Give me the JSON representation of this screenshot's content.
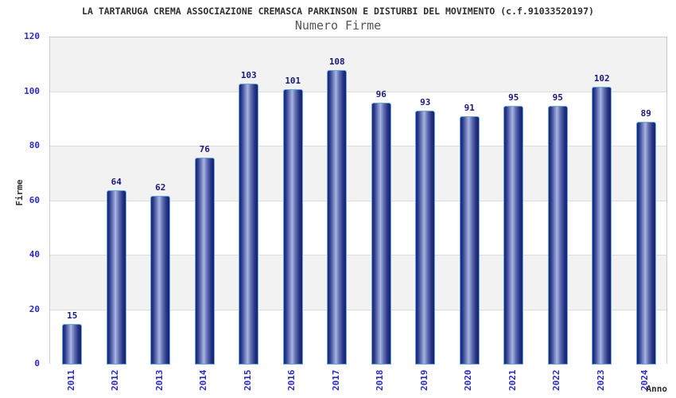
{
  "header": {
    "title": "LA TARTARUGA CREMA ASSOCIAZIONE CREMASCA PARKINSON E DISTURBI DEL MOVIMENTO (c.f.91033520197)",
    "subtitle": "Numero Firme"
  },
  "chart_data": {
    "type": "bar",
    "title": "Numero Firme",
    "categories": [
      "2011",
      "2012",
      "2013",
      "2014",
      "2015",
      "2016",
      "2017",
      "2018",
      "2019",
      "2020",
      "2021",
      "2022",
      "2023",
      "2024"
    ],
    "values": [
      15,
      64,
      62,
      76,
      103,
      101,
      108,
      96,
      93,
      91,
      95,
      95,
      102,
      89
    ],
    "xlabel": "Anno",
    "ylabel": "Firme",
    "ylim": [
      0,
      120
    ],
    "yticks": [
      0,
      20,
      40,
      60,
      80,
      100,
      120
    ],
    "grid": "horizontal alternating bands every 20 units",
    "legend": "none",
    "value_labels": "above each bar"
  },
  "colors": {
    "title_color": "#2f2f2f",
    "subtitle_color": "#555555",
    "tick_label": "#2828d4",
    "value_label": "#19197d",
    "bar_dark": "#1a2574",
    "bar_light": "#aab4de",
    "bar_border": "#61abe4",
    "band_gray": "#f2f2f2",
    "band_white": "#ffffff",
    "plot_border": "#cccccc",
    "grid_color": "#dddddd"
  }
}
